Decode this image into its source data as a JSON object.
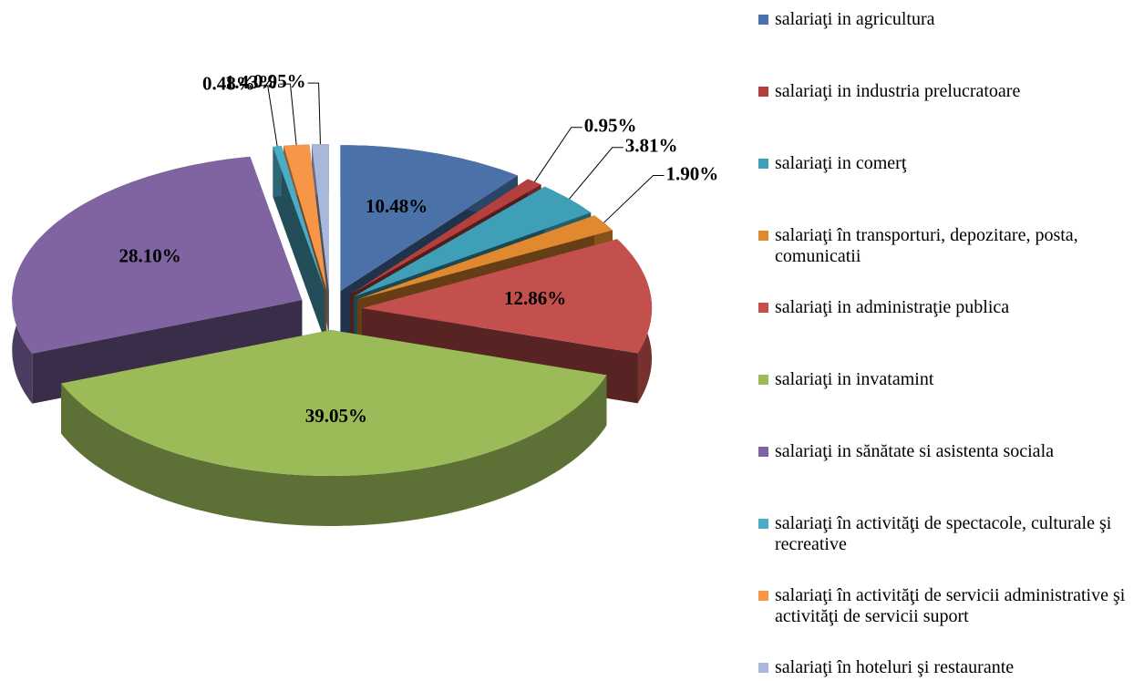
{
  "chart_data": {
    "type": "pie",
    "categories": [
      "salariaţi in agricultura",
      "salariaţi in industria prelucratoare",
      "salariaţi in comerţ",
      "salariaţi în transporturi, depozitare, posta, comunicatii",
      "salariaţi in administraţie publica",
      "salariaţi in invatamint",
      "salariaţi in sănătate si asistenta sociala",
      "salariaţi în activităţi de spectacole, culturale şi recreative",
      "salariaţi în activităţi de servicii administrative şi activităţi de servicii suport",
      "salariaţi în hoteluri şi restaurante"
    ],
    "values": [
      10.48,
      0.95,
      3.81,
      1.9,
      12.86,
      39.05,
      28.1,
      0.48,
      1.43,
      0.95
    ],
    "value_labels": [
      "10.48%",
      "0.95%",
      "3.81%",
      "1.90%",
      "12.86%",
      "39.05%",
      "28.10%",
      "0.48%",
      "1.43%",
      "0.95%"
    ],
    "colors": [
      "#4a72a8",
      "#b3403d",
      "#3e9fb6",
      "#e0892e",
      "#c4504d",
      "#9bbb59",
      "#8064a2",
      "#4bacc6",
      "#f79646",
      "#a8b7da"
    ],
    "legend": "right"
  }
}
